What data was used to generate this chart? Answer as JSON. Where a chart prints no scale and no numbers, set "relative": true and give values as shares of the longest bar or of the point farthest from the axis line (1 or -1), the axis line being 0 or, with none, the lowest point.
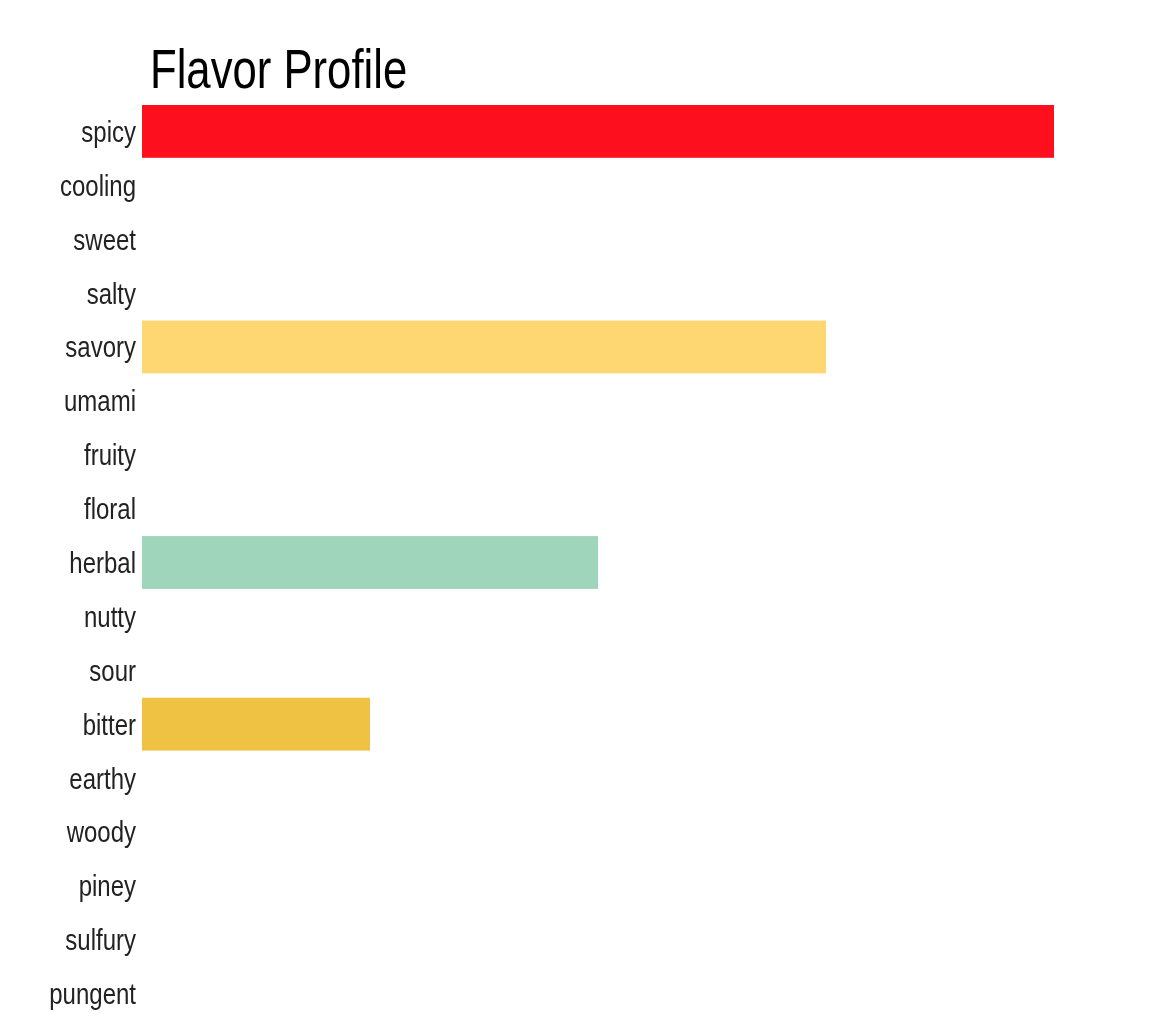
{
  "chart_data": {
    "type": "bar",
    "orientation": "horizontal",
    "relative": true,
    "title": "Flavor Profile",
    "categories": [
      "spicy",
      "cooling",
      "sweet",
      "salty",
      "savory",
      "umami",
      "fruity",
      "floral",
      "herbal",
      "nutty",
      "sour",
      "bitter",
      "earthy",
      "woody",
      "piney",
      "sulfury",
      "pungent"
    ],
    "values": [
      1,
      0,
      0,
      0,
      0.75,
      0,
      0,
      0,
      0.5,
      0,
      0,
      0.25,
      0,
      0,
      0,
      0,
      0
    ],
    "colors": [
      "#fe0f1e",
      null,
      null,
      null,
      "#fed672",
      null,
      null,
      null,
      "#9ed5bb",
      null,
      null,
      "#f0c243",
      null,
      null,
      null,
      null,
      null
    ]
  }
}
